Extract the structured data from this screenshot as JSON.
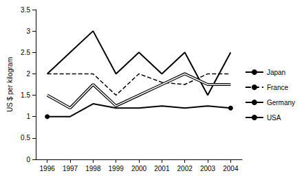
{
  "chart_data": {
    "type": "line",
    "y_label": "US $ per kilogram",
    "categories": [
      "1996",
      "1997",
      "1998",
      "1999",
      "2000",
      "2001",
      "2002",
      "2003",
      "2004"
    ],
    "series": [
      {
        "name": "Japan",
        "color": "#000000",
        "line_style": "solid",
        "values": [
          2,
          2.5,
          3,
          2,
          2.5,
          2,
          2.5,
          1.5,
          2.5
        ]
      },
      {
        "name": "France",
        "color": "#000000",
        "line_style": "dashed",
        "values": [
          2,
          2,
          2,
          1.5,
          2,
          1.8,
          1.75,
          2,
          2
        ]
      },
      {
        "name": "Germany",
        "color": "#000000",
        "line_style": "double",
        "values": [
          1.5,
          1.2,
          1.75,
          1.25,
          1.5,
          1.75,
          2,
          1.75,
          1.75
        ]
      },
      {
        "name": "USA",
        "color": "#000000",
        "line_style": "solid",
        "marker": "circle",
        "values": [
          1,
          1,
          1.3,
          1.2,
          1.2,
          1.25,
          1.2,
          1.25,
          1.2
        ]
      }
    ],
    "ylim": [
      0,
      3.5
    ],
    "yticks": [
      0,
      0.5,
      1,
      1.5,
      2,
      2.5,
      3,
      3.5
    ],
    "grid": false,
    "legend": "right"
  }
}
